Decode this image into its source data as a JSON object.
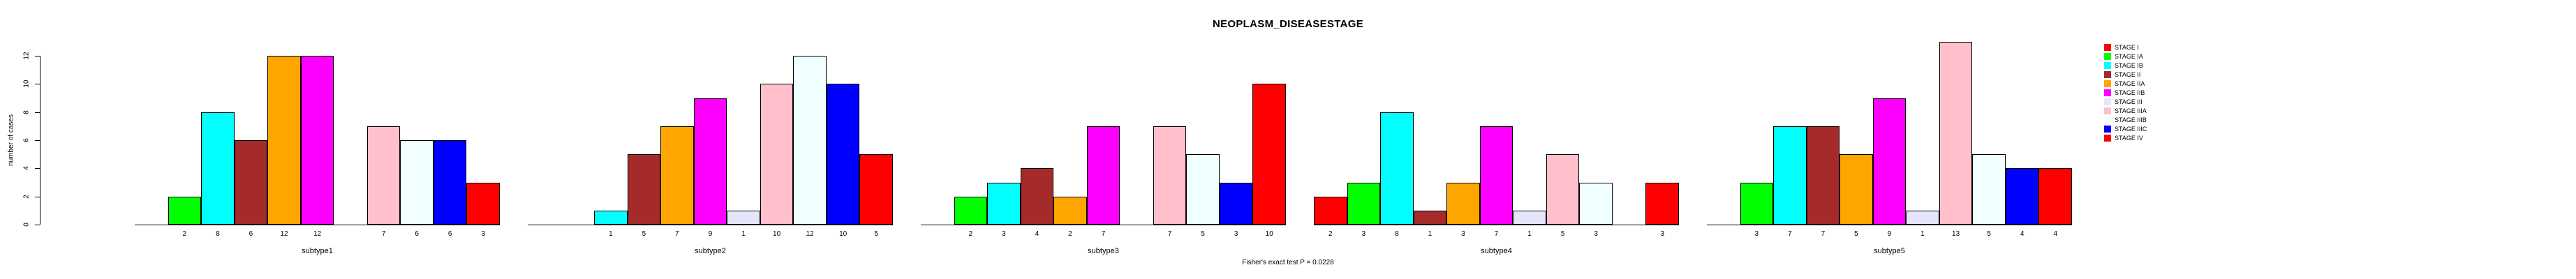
{
  "chart_data": {
    "type": "bar",
    "title": "NEOPLASM_DISEASESTAGE",
    "ylabel": "number of cases",
    "annotation": "Fisher's exact test P = 0.0228",
    "yticks": [
      0,
      2,
      4,
      6,
      8,
      10,
      12
    ],
    "ylim": [
      0,
      13.5
    ],
    "grid": false,
    "legend_position": "right",
    "legend": {
      "entries": [
        {
          "label": "STAGE I",
          "color": "#FF0000"
        },
        {
          "label": "STAGE IA",
          "color": "#00FF00"
        },
        {
          "label": "STAGE IB",
          "color": "#00FFFF"
        },
        {
          "label": "STAGE II",
          "color": "#A52A2A"
        },
        {
          "label": "STAGE IIA",
          "color": "#FFA500"
        },
        {
          "label": "STAGE IIB",
          "color": "#FF00FF"
        },
        {
          "label": "STAGE III",
          "color": "#E6E6FA"
        },
        {
          "label": "STAGE IIIA",
          "color": "#FFC0CB"
        },
        {
          "label": "STAGE IIIB",
          "color": "#F0FFFF"
        },
        {
          "label": "STAGE IIIC",
          "color": "#0000FF"
        },
        {
          "label": "STAGE IV",
          "color": "#FF0000"
        }
      ]
    },
    "categories": [
      "STAGE I",
      "STAGE IA",
      "STAGE IB",
      "STAGE II",
      "STAGE IIA",
      "STAGE IIB",
      "STAGE III",
      "STAGE IIIA",
      "STAGE IIIB",
      "STAGE IIIC",
      "STAGE IV"
    ],
    "panels": [
      {
        "label": "subtype1",
        "values": [
          0,
          2,
          8,
          6,
          12,
          12,
          0,
          7,
          6,
          6,
          3
        ]
      },
      {
        "label": "subtype2",
        "values": [
          0,
          0,
          1,
          5,
          7,
          9,
          1,
          10,
          12,
          10,
          5
        ]
      },
      {
        "label": "subtype3",
        "values": [
          0,
          2,
          3,
          4,
          2,
          7,
          0,
          7,
          5,
          3,
          10
        ]
      },
      {
        "label": "subtype4",
        "values": [
          2,
          3,
          8,
          1,
          3,
          7,
          1,
          5,
          3,
          0,
          3
        ]
      },
      {
        "label": "subtype5",
        "values": [
          0,
          3,
          7,
          7,
          5,
          9,
          1,
          13,
          5,
          4,
          4
        ]
      }
    ]
  }
}
